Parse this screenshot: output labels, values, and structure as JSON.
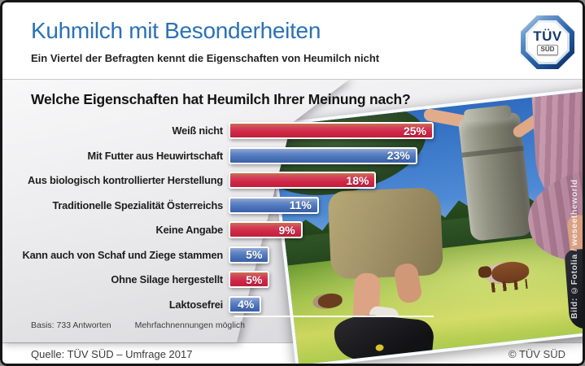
{
  "header": {
    "title": "Kuhmilch mit Besonderheiten",
    "subtitle": "Ein Viertel der Befragten kennt die Eigenschaften von Heumilch nicht",
    "logo": {
      "top": "TÜV",
      "bottom": "SÜD"
    }
  },
  "chart_data": {
    "type": "bar",
    "orientation": "horizontal",
    "title": "Welche Eigenschaften hat Heumilch Ihrer Meinung nach?",
    "categories": [
      "Weiß nicht",
      "Mit Futter aus Heuwirtschaft",
      "Aus biologisch kontrollierter Herstellung",
      "Traditionelle Spezialität Österreichs",
      "Keine Angabe",
      "Kann auch von Schaf und Ziege stammen",
      "Ohne Silage hergestellt",
      "Laktosefrei"
    ],
    "values": [
      25,
      23,
      18,
      11,
      9,
      5,
      5,
      4
    ],
    "value_labels": [
      "25%",
      "23%",
      "18%",
      "11%",
      "9%",
      "5%",
      "5%",
      "4%"
    ],
    "unit": "%",
    "xlim": [
      0,
      25
    ],
    "bar_color_pattern": [
      "red",
      "blue",
      "red",
      "blue",
      "red",
      "blue",
      "red",
      "blue"
    ],
    "colors": {
      "red": "#cc2342",
      "blue": "#4a74ba"
    },
    "legend": null,
    "grid": false,
    "notes": [
      "Basis: 733 Antworten",
      "Mehrfachnennungen möglich"
    ]
  },
  "footer": {
    "source": "Quelle: TÜV SÜD – Umfrage 2017",
    "copyright": "© TÜV SÜD"
  },
  "photo_credit": "Bild: ©Fotolia / weseetheworld",
  "colors": {
    "title_blue": "#2a72b5",
    "panel_gray": "#e8e8ea",
    "frame_black": "#161616"
  }
}
